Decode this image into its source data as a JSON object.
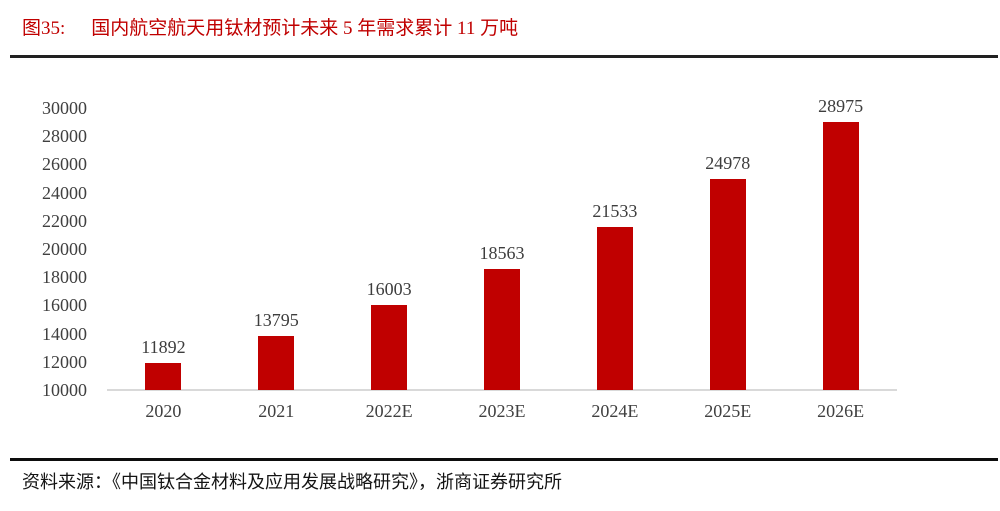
{
  "header": {
    "figure_label": "图35:",
    "title": "国内航空航天用钛材预计未来 5 年需求累计 11 万吨"
  },
  "footer": {
    "source": "资料来源：《中国钛合金材料及应用发展战略研究》，浙商证券研究所"
  },
  "colors": {
    "bar": "#c00000",
    "title": "#c00000",
    "axis_text": "#404040",
    "baseline": "#d9d9d9",
    "title_rule": "#212121",
    "source_rule": "#0d0d0d"
  },
  "chart_data": {
    "type": "bar",
    "categories": [
      "2020",
      "2021",
      "2022E",
      "2023E",
      "2024E",
      "2025E",
      "2026E"
    ],
    "values": [
      11892,
      13795,
      16003,
      18563,
      21533,
      24978,
      28975
    ],
    "title": "国内航空航天用钛材预计未来 5 年需求累计 11 万吨",
    "xlabel": "",
    "ylabel": "",
    "ylim": [
      10000,
      30000
    ],
    "yticks": [
      10000,
      12000,
      14000,
      16000,
      18000,
      20000,
      22000,
      24000,
      26000,
      28000,
      30000
    ],
    "grid": false,
    "legend": false,
    "data_labels": true,
    "bar_color": "#c00000"
  }
}
